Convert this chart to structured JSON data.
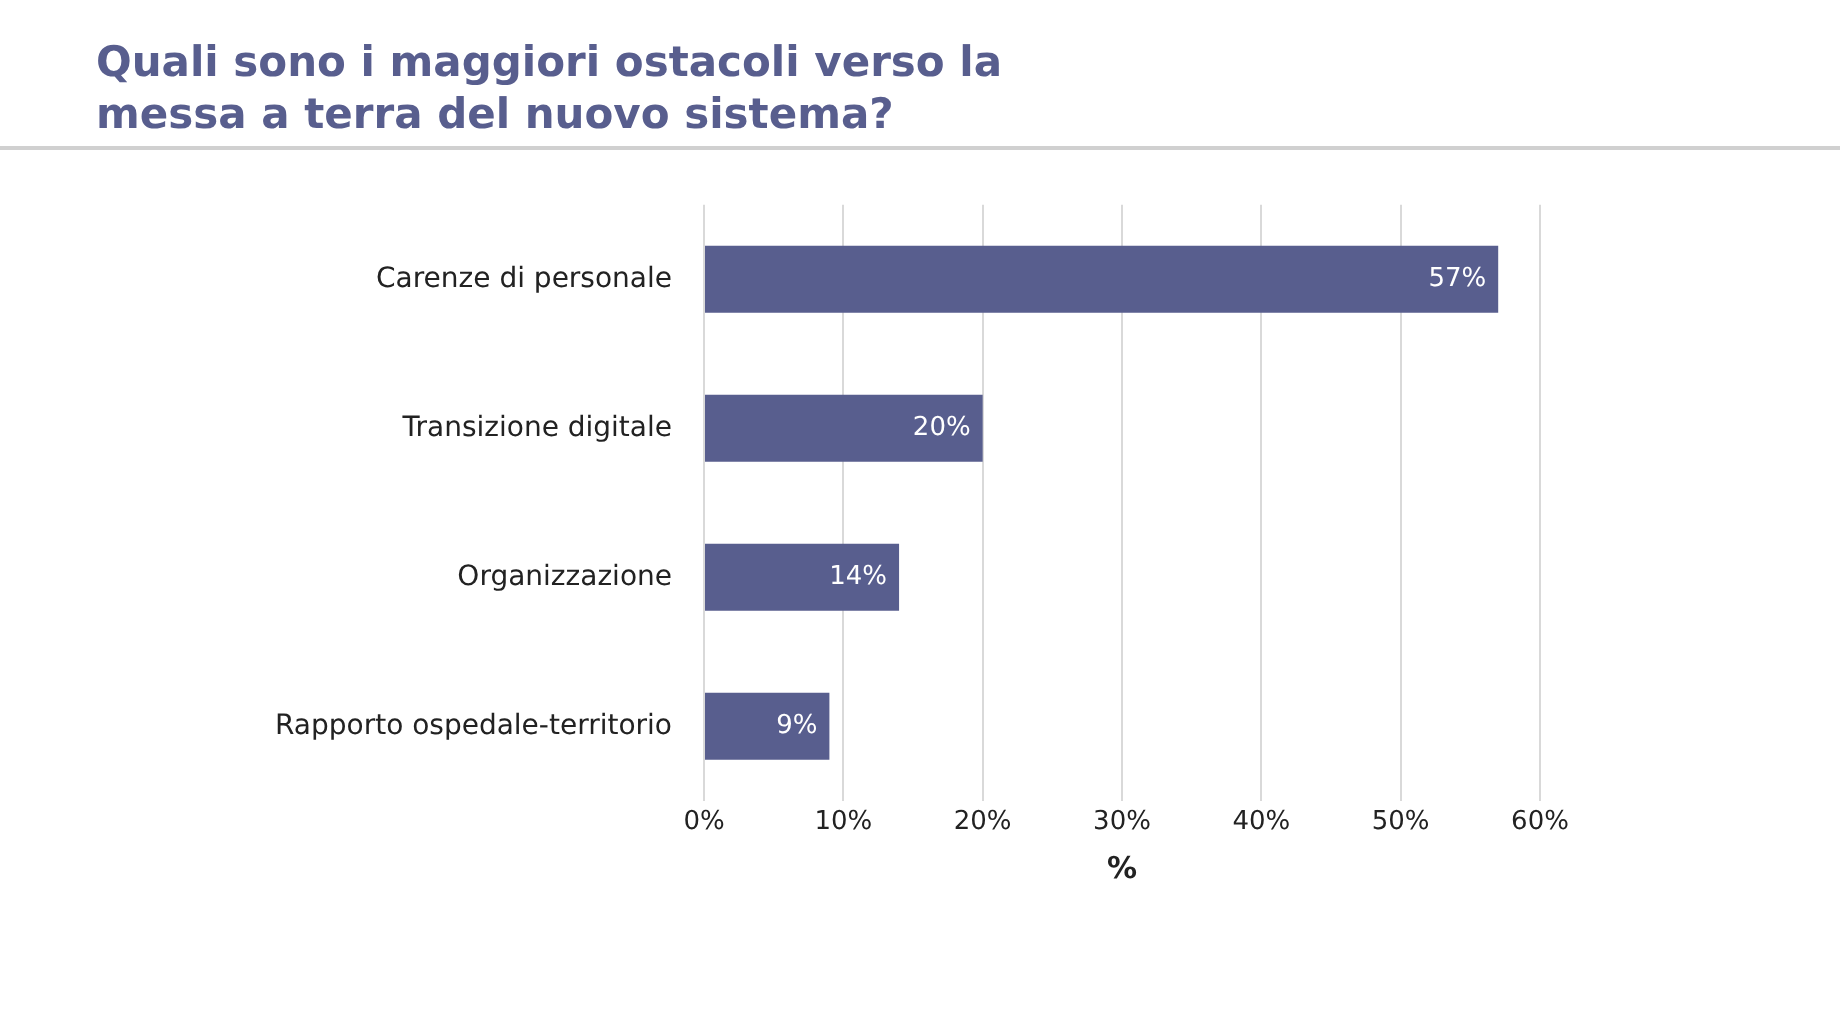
{
  "chart_data": {
    "type": "bar",
    "orientation": "horizontal",
    "title": "Quali sono i maggiori ostacoli verso la messa a terra del nuovo sistema?",
    "xlabel": "%",
    "categories": [
      "Carenze di personale",
      "Transizione digitale",
      "Organizzazione",
      "Rapporto ospedale-territorio"
    ],
    "values": [
      57,
      20,
      14,
      9
    ],
    "color": "#585e8e",
    "value_labels": [
      "57%",
      "20%",
      "14%",
      "9%"
    ],
    "xlim": [
      0,
      60
    ],
    "xticks": [
      {
        "value": 0,
        "label": "0%"
      },
      {
        "value": 10,
        "label": "10%"
      },
      {
        "value": 20,
        "label": "20%"
      },
      {
        "value": 30,
        "label": "30%"
      },
      {
        "value": 40,
        "label": "40%"
      },
      {
        "value": 50,
        "label": "50%"
      },
      {
        "value": 60,
        "label": "60%"
      }
    ],
    "grid": "x",
    "legend": false
  }
}
